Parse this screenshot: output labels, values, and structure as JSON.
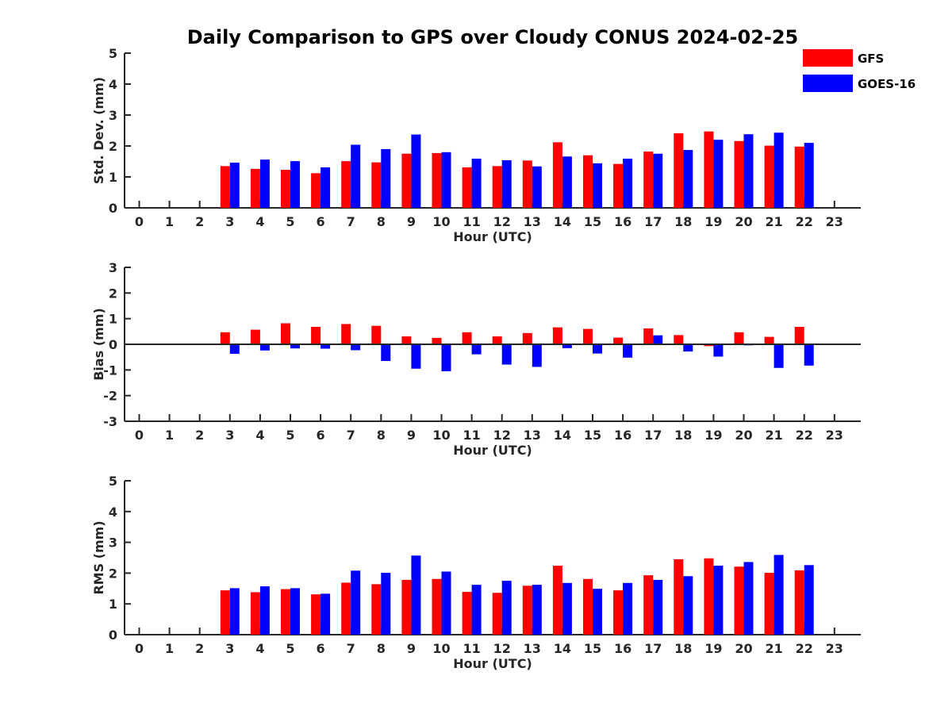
{
  "colors": {
    "gfs": "#ff0000",
    "goes": "#0000ff",
    "axis": "#262626"
  },
  "chart_data": {
    "title": "Daily Comparison to GPS over Cloudy CONUS 2024-02-25",
    "legend": {
      "placement": "top-right",
      "entries": [
        "GFS",
        "GOES-16"
      ]
    },
    "panels": [
      {
        "type": "bar",
        "xlabel": "Hour (UTC)",
        "ylabel": "Std. Dev. (mm)",
        "ylim": [
          0,
          5
        ],
        "yticks": [
          "0",
          "1",
          "2",
          "3",
          "4",
          "5"
        ],
        "x": [
          "0",
          "1",
          "2",
          "3",
          "4",
          "5",
          "6",
          "7",
          "8",
          "9",
          "10",
          "11",
          "12",
          "13",
          "14",
          "15",
          "16",
          "17",
          "18",
          "19",
          "20",
          "21",
          "22",
          "23"
        ],
        "zero_line": false,
        "series": [
          {
            "name": "GFS",
            "values": [
              null,
              null,
              null,
              1.35,
              1.26,
              1.23,
              1.12,
              1.51,
              1.47,
              1.75,
              1.77,
              1.31,
              1.35,
              1.53,
              2.12,
              1.7,
              1.42,
              1.82,
              2.41,
              2.47,
              2.16,
              2.01,
              1.98,
              null
            ]
          },
          {
            "name": "GOES-16",
            "values": [
              null,
              null,
              null,
              1.46,
              1.56,
              1.51,
              1.31,
              2.04,
              1.9,
              2.37,
              1.8,
              1.59,
              1.54,
              1.34,
              1.66,
              1.44,
              1.59,
              1.75,
              1.87,
              2.2,
              2.38,
              2.43,
              2.1,
              null
            ]
          }
        ]
      },
      {
        "type": "bar",
        "xlabel": "Hour (UTC)",
        "ylabel": "Bias (mm)",
        "ylim": [
          -3,
          3
        ],
        "yticks": [
          "-3",
          "-2",
          "-1",
          "0",
          "1",
          "2",
          "3"
        ],
        "x": [
          "0",
          "1",
          "2",
          "3",
          "4",
          "5",
          "6",
          "7",
          "8",
          "9",
          "10",
          "11",
          "12",
          "13",
          "14",
          "15",
          "16",
          "17",
          "18",
          "19",
          "20",
          "21",
          "22",
          "23"
        ],
        "zero_line": true,
        "series": [
          {
            "name": "GFS",
            "values": [
              null,
              null,
              null,
              0.47,
              0.57,
              0.82,
              0.68,
              0.79,
              0.72,
              0.31,
              0.25,
              0.47,
              0.31,
              0.44,
              0.66,
              0.6,
              0.26,
              0.62,
              0.36,
              -0.07,
              0.47,
              0.29,
              0.68,
              null
            ]
          },
          {
            "name": "GOES-16",
            "values": [
              null,
              null,
              null,
              -0.37,
              -0.24,
              -0.16,
              -0.17,
              -0.23,
              -0.65,
              -0.95,
              -1.05,
              -0.39,
              -0.79,
              -0.88,
              -0.15,
              -0.36,
              -0.52,
              0.35,
              -0.28,
              -0.48,
              -0.04,
              -0.92,
              -0.83,
              null
            ]
          }
        ]
      },
      {
        "type": "bar",
        "xlabel": "Hour (UTC)",
        "ylabel": "RMS (mm)",
        "ylim": [
          0,
          5
        ],
        "yticks": [
          "0",
          "1",
          "2",
          "3",
          "4",
          "5"
        ],
        "x": [
          "0",
          "1",
          "2",
          "3",
          "4",
          "5",
          "6",
          "7",
          "8",
          "9",
          "10",
          "11",
          "12",
          "13",
          "14",
          "15",
          "16",
          "17",
          "18",
          "19",
          "20",
          "21",
          "22",
          "23"
        ],
        "zero_line": false,
        "series": [
          {
            "name": "GFS",
            "values": [
              null,
              null,
              null,
              1.44,
              1.38,
              1.48,
              1.31,
              1.69,
              1.64,
              1.78,
              1.81,
              1.39,
              1.36,
              1.59,
              2.24,
              1.81,
              1.44,
              1.93,
              2.45,
              2.48,
              2.21,
              2.01,
              2.09,
              null
            ]
          },
          {
            "name": "GOES-16",
            "values": [
              null,
              null,
              null,
              1.51,
              1.57,
              1.51,
              1.33,
              2.08,
              2.01,
              2.57,
              2.05,
              1.62,
              1.75,
              1.62,
              1.68,
              1.49,
              1.68,
              1.78,
              1.9,
              2.24,
              2.36,
              2.59,
              2.26,
              null
            ]
          }
        ]
      }
    ]
  }
}
